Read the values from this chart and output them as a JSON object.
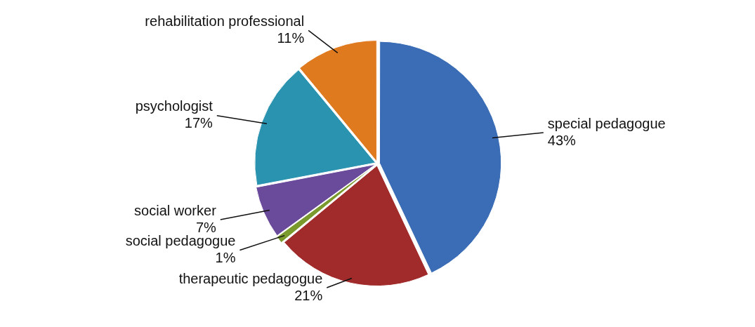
{
  "chart_data": {
    "type": "pie",
    "categories": [
      "special pedagogue",
      "therapeutic pedagogue",
      "social pedagogue",
      "social worker",
      "psychologist",
      "rehabilitation professional"
    ],
    "values": [
      43,
      21,
      1,
      7,
      17,
      11
    ],
    "value_labels": [
      "43%",
      "21%",
      "1%",
      "7%",
      "17%",
      "11%"
    ],
    "colors": [
      "#3a6db5",
      "#a12b2b",
      "#7a9a2e",
      "#6a4a9a",
      "#2a93b0",
      "#e07a1e"
    ],
    "legend": false
  }
}
